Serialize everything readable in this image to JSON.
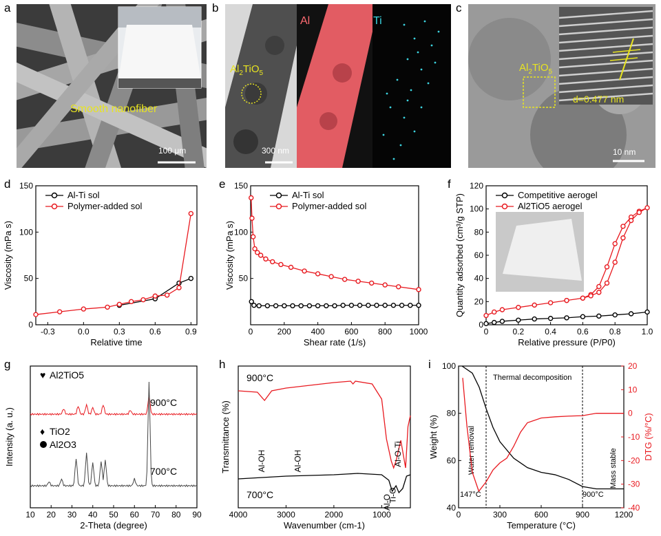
{
  "panels": {
    "a": {
      "label": "a",
      "caption": "Smooth nanofiber",
      "scalebar": "100  μm"
    },
    "b": {
      "label": "b",
      "compound": "Al",
      "compound_sub": "2",
      "compound_mid": "TiO",
      "compound_sub2": "5",
      "al_label": "Al",
      "ti_label": "Ti",
      "scalebar": "300 nm"
    },
    "c": {
      "label": "c",
      "compound": "Al",
      "compound_sub": "2",
      "compound_mid": "TiO",
      "compound_sub2": "5",
      "dspacing": "d=0.477 nm",
      "scalebar": "10 nm"
    },
    "d": {
      "label": "d"
    },
    "e": {
      "label": "e"
    },
    "f": {
      "label": "f"
    },
    "g": {
      "label": "g"
    },
    "h": {
      "label": "h"
    },
    "i": {
      "label": "i"
    }
  },
  "chart_data": [
    {
      "id": "d",
      "type": "line",
      "xlabel": "Relative time",
      "ylabel": "Viscosity (mPa s)",
      "xlim": [
        -0.4,
        0.95
      ],
      "ylim": [
        0,
        150
      ],
      "xticks": [
        "-0.3",
        "0.0",
        "0.3",
        "0.6",
        "0.9"
      ],
      "xtick_values": [
        -0.3,
        0.0,
        0.3,
        0.6,
        0.9
      ],
      "yticks": [
        "0",
        "50",
        "100",
        "150"
      ],
      "ytick_values": [
        0,
        50,
        100,
        150
      ],
      "series": [
        {
          "name": "Al-Ti sol",
          "color": "#000000",
          "x": [
            0.3,
            0.6,
            0.8,
            0.9
          ],
          "y": [
            21,
            28,
            45,
            50
          ]
        },
        {
          "name": "Polymer-added sol",
          "color": "#e8191f",
          "x": [
            -0.4,
            -0.2,
            0.0,
            0.2,
            0.3,
            0.4,
            0.5,
            0.6,
            0.7,
            0.8,
            0.9
          ],
          "y": [
            11,
            14,
            17,
            19,
            22,
            25,
            27,
            31,
            32,
            40,
            120
          ]
        }
      ]
    },
    {
      "id": "e",
      "type": "line",
      "xlabel": "Shear rate (1/s)",
      "ylabel": "Viscosity (mPa s)",
      "xlim": [
        0,
        1000
      ],
      "ylim": [
        0,
        150
      ],
      "xticks": [
        "0",
        "200",
        "400",
        "600",
        "800",
        "1000"
      ],
      "xtick_values": [
        0,
        200,
        400,
        600,
        800,
        1000
      ],
      "yticks": [
        "50",
        "100",
        "150"
      ],
      "ytick_values": [
        50,
        100,
        150
      ],
      "series": [
        {
          "name": "Al-Ti sol",
          "color": "#000000",
          "x": [
            5,
            20,
            50,
            100,
            150,
            200,
            250,
            300,
            350,
            400,
            450,
            500,
            550,
            600,
            650,
            700,
            750,
            800,
            850,
            900,
            950,
            1000
          ],
          "y": [
            25,
            21,
            20.5,
            20.5,
            20.5,
            20.5,
            20.5,
            20.5,
            20.5,
            20.5,
            20.5,
            20.5,
            21,
            21,
            21,
            21,
            21,
            21,
            21,
            21,
            21,
            21
          ]
        },
        {
          "name": "Polymer-added sol",
          "color": "#e8191f",
          "x": [
            3,
            8,
            15,
            25,
            40,
            60,
            90,
            130,
            180,
            240,
            320,
            400,
            480,
            560,
            640,
            720,
            800,
            880,
            1000
          ],
          "y": [
            137,
            115,
            95,
            82,
            78,
            75,
            71,
            68,
            65,
            62,
            58,
            55,
            52,
            49,
            47,
            45,
            43,
            41,
            38
          ]
        }
      ]
    },
    {
      "id": "f",
      "type": "line",
      "xlabel": "Relative pressure (P/P0)",
      "ylabel": "Quantity adsorbed (cm³/g STP)",
      "xlim": [
        0,
        1.0
      ],
      "ylim": [
        0,
        120
      ],
      "xticks": [
        "0",
        "0.2",
        "0.4",
        "0.6",
        "0.8",
        "1.0"
      ],
      "xtick_values": [
        0,
        0.2,
        0.4,
        0.6,
        0.8,
        1.0
      ],
      "yticks": [
        "0",
        "20",
        "40",
        "60",
        "80",
        "100",
        "120"
      ],
      "ytick_values": [
        0,
        20,
        40,
        60,
        80,
        100,
        120
      ],
      "series": [
        {
          "name": "Competitive aerogel",
          "color": "#000000",
          "x": [
            0.0,
            0.05,
            0.1,
            0.2,
            0.3,
            0.4,
            0.5,
            0.6,
            0.7,
            0.8,
            0.9,
            1.0
          ],
          "y": [
            1,
            2,
            3,
            4,
            5,
            5.5,
            6,
            7,
            7.5,
            8.5,
            9.5,
            11
          ]
        },
        {
          "name": "Al2TiO5 aerogel",
          "color": "#e8191f",
          "x": [
            0.0,
            0.05,
            0.1,
            0.2,
            0.3,
            0.4,
            0.5,
            0.6,
            0.65,
            0.7,
            0.75,
            0.8,
            0.85,
            0.9,
            0.95,
            1.0,
            0.95,
            0.9,
            0.85,
            0.8,
            0.75,
            0.7,
            0.65,
            0.6,
            0.5
          ],
          "y": [
            8,
            11,
            13,
            15,
            17,
            19,
            21,
            23,
            26,
            33,
            50,
            70,
            85,
            93,
            98,
            101,
            97,
            90,
            75,
            54,
            36,
            28,
            25,
            23,
            21
          ]
        }
      ],
      "inset": "photo of white aerogel block"
    },
    {
      "id": "g",
      "type": "line",
      "xlabel": "2-Theta (degree)",
      "ylabel": "Intensity (a. u.)",
      "xlim": [
        10,
        90
      ],
      "xticks": [
        "10",
        "20",
        "30",
        "40",
        "50",
        "60",
        "70",
        "80",
        "90"
      ],
      "xtick_values": [
        10,
        20,
        30,
        40,
        50,
        60,
        70,
        80,
        90
      ],
      "legend": [
        {
          "symbol": "heart",
          "name": "Al",
          "sub": "2",
          "rest": "TiO",
          "sub2": "5"
        },
        {
          "symbol": "diamond",
          "name": "TiO",
          "sub": "2"
        },
        {
          "symbol": "circle",
          "name": "Al",
          "sub": "2",
          "rest": "O",
          "sub2": "3"
        }
      ],
      "series": [
        {
          "name": "900°C",
          "label": "900",
          "unit": "C",
          "color": "#e8191f"
        },
        {
          "name": "700°C",
          "label": "700",
          "unit": "C",
          "color": "#444444"
        }
      ]
    },
    {
      "id": "h",
      "type": "line",
      "xlabel": "Wavenumber (cm-1)",
      "ylabel": "Transmittance (%)",
      "xlim": [
        4000,
        400
      ],
      "xticks": [
        "4000",
        "3000",
        "2000",
        "1000"
      ],
      "xtick_values": [
        4000,
        3000,
        2000,
        1000
      ],
      "annotations": [
        "Al-OH",
        "Al-OH",
        "Al-O-Ti",
        "Ti-O",
        "Al-O"
      ],
      "series": [
        {
          "name": "900°C",
          "label": "900",
          "unit": "C",
          "color": "#e8191f"
        },
        {
          "name": "700°C",
          "label": "700",
          "unit": "C",
          "color": "#000000"
        }
      ]
    },
    {
      "id": "i",
      "type": "line",
      "xlabel": "Temperature (°C)",
      "ylabel": "Weight (%)",
      "ylabel2": "DTG (%/°C)",
      "xlim": [
        0,
        1200
      ],
      "xticks": [
        "0",
        "300",
        "600",
        "900",
        "1200"
      ],
      "xtick_values": [
        0,
        300,
        600,
        900,
        1200
      ],
      "ylim": [
        40,
        100
      ],
      "yticks": [
        "40",
        "60",
        "80",
        "100"
      ],
      "ytick_values": [
        40,
        60,
        80,
        100
      ],
      "ylim2": [
        -40,
        20
      ],
      "yticks2": [
        "-40",
        "-30",
        "-20",
        "-10",
        "0",
        "10",
        "20"
      ],
      "ytick_values2": [
        -40,
        -30,
        -20,
        -10,
        0,
        10,
        20
      ],
      "regions": [
        "Water removal",
        "Thermal decomposition",
        "Mass stable"
      ],
      "annotations": [
        "147",
        "900"
      ],
      "annotation_unit": "C",
      "series": [
        {
          "name": "Weight",
          "color": "#000000",
          "x": [
            25,
            100,
            150,
            200,
            250,
            300,
            400,
            500,
            600,
            700,
            800,
            900,
            1000,
            1100,
            1200
          ],
          "y": [
            100,
            97,
            91,
            82,
            74,
            68,
            61,
            57,
            55,
            54,
            52,
            49,
            48,
            48,
            48
          ]
        },
        {
          "name": "DTG",
          "color": "#e8191f",
          "axis": "right",
          "x": [
            30,
            60,
            100,
            147,
            200,
            250,
            300,
            350,
            400,
            450,
            500,
            600,
            700,
            800,
            900,
            1000,
            1100,
            1200
          ],
          "y": [
            15,
            -5,
            -25,
            -33,
            -29,
            -24,
            -21,
            -19,
            -14,
            -8,
            -4,
            -2,
            -1.5,
            -1.2,
            -1,
            0,
            0,
            0
          ]
        }
      ]
    }
  ]
}
